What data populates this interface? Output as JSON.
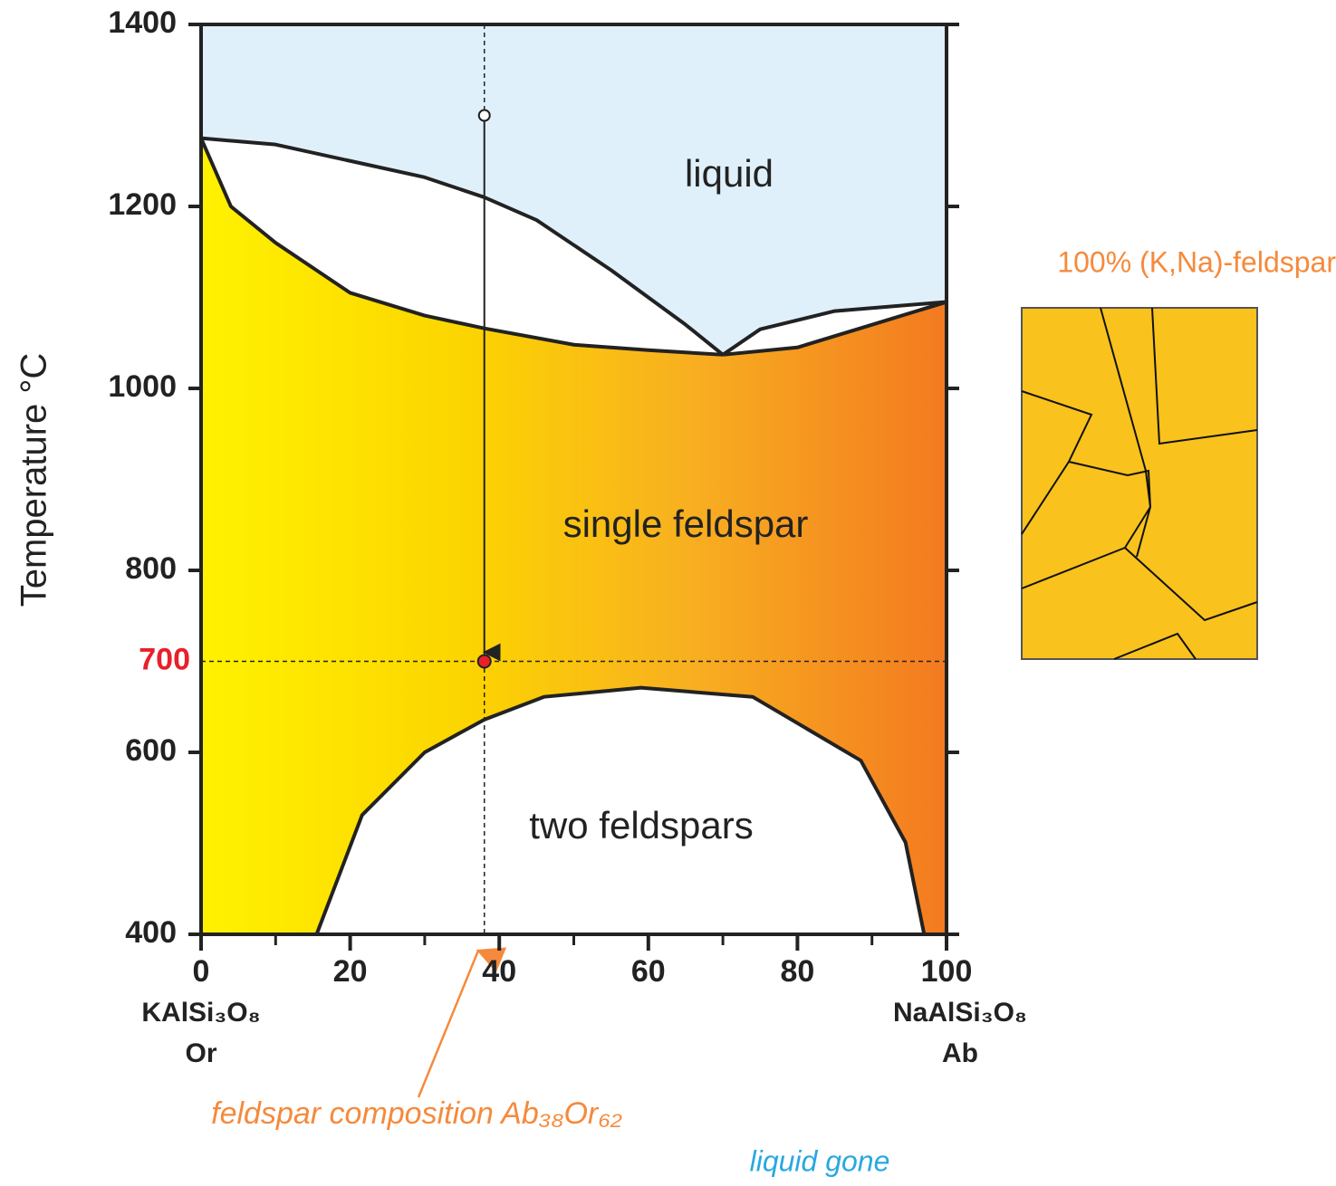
{
  "chart_data": {
    "type": "phase",
    "y_label": "Temperature °C",
    "xlim": [
      0,
      100
    ],
    "ylim": [
      400,
      1400
    ],
    "xticks": [
      0,
      20,
      40,
      60,
      80,
      100
    ],
    "xminor": [
      10,
      30,
      50,
      70,
      90
    ],
    "yticks": [
      400,
      600,
      800,
      1000,
      1200,
      1400
    ],
    "left_end": [
      "KAlSi₃O₈",
      "Or"
    ],
    "right_end": [
      "NaAlSi₃O₈",
      "Ab"
    ],
    "regions": [
      "liquid",
      "single feldspar",
      "two feldspars"
    ],
    "liquidus": {
      "x": [
        0,
        10,
        20,
        30,
        38,
        45,
        55,
        65,
        70
      ],
      "y": [
        1275,
        1268,
        1250,
        1232,
        1210,
        1185,
        1130,
        1070,
        1037
      ]
    },
    "liquidus_right": {
      "x": [
        70,
        75,
        85,
        100
      ],
      "y": [
        1037,
        1065,
        1085,
        1095
      ]
    },
    "solidus": {
      "x": [
        0,
        4,
        10,
        20,
        30,
        38,
        50,
        60,
        70
      ],
      "y": [
        1275,
        1200,
        1160,
        1105,
        1080,
        1066,
        1048,
        1042,
        1037
      ]
    },
    "solidus_right": {
      "x": [
        70,
        80,
        90,
        100
      ],
      "y": [
        1037,
        1045,
        1070,
        1095
      ]
    },
    "solvus": {
      "x": [
        15.5,
        21.6,
        30,
        38,
        46,
        59,
        74,
        88.5,
        94.5,
        97
      ],
      "y": [
        400,
        531,
        600,
        636,
        661,
        671,
        661,
        591,
        501,
        400
      ]
    },
    "path": {
      "composition": 38,
      "start": 1300,
      "end": 700
    },
    "annotation": "feldspar composition Ab₃₈Or₆₂",
    "status": "liquid gone",
    "inset_title": "100% (K,Na)-feldspar"
  }
}
